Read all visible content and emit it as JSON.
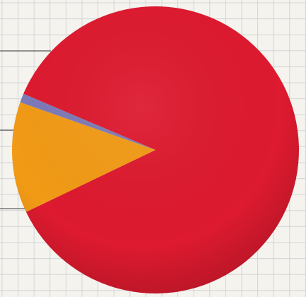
{
  "chart_data": {
    "type": "pie",
    "title": "",
    "series": [
      {
        "values": [
          86.5,
          12.5,
          1.0
        ]
      }
    ],
    "colors": [
      "#dd1a2f",
      "#f19a16",
      "#7d7ab8"
    ],
    "background_grid": true
  }
}
